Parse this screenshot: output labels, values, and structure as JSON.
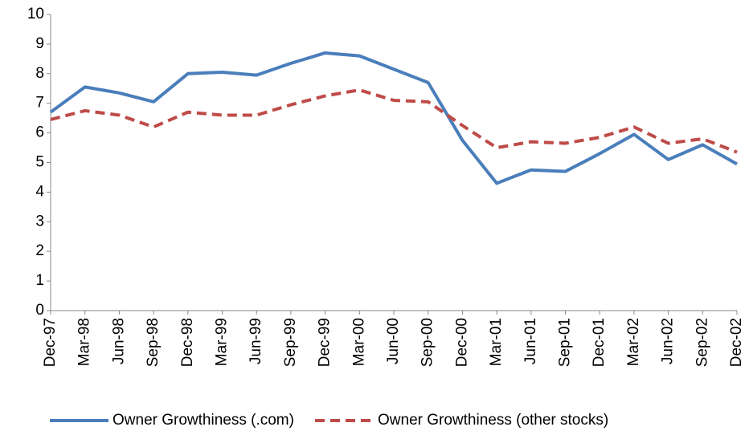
{
  "chart_data": {
    "type": "line",
    "categories": [
      "Dec-97",
      "Mar-98",
      "Jun-98",
      "Sep-98",
      "Dec-98",
      "Mar-99",
      "Jun-99",
      "Sep-99",
      "Dec-99",
      "Mar-00",
      "Jun-00",
      "Sep-00",
      "Dec-00",
      "Mar-01",
      "Jun-01",
      "Sep-01",
      "Dec-01",
      "Mar-02",
      "Jun-02",
      "Sep-02",
      "Dec-02"
    ],
    "series": [
      {
        "name": "Owner Growthiness (.com)",
        "color": "#4a7ebb",
        "line_style": "solid",
        "values": [
          6.7,
          7.55,
          7.35,
          7.05,
          8.0,
          8.05,
          7.95,
          8.35,
          8.7,
          8.6,
          8.15,
          7.7,
          5.75,
          4.3,
          4.75,
          4.7,
          5.3,
          5.95,
          5.1,
          5.6,
          4.95
        ]
      },
      {
        "name": "Owner Growthiness (other stocks)",
        "color": "#be4b48",
        "line_style": "dashed",
        "values": [
          6.45,
          6.75,
          6.6,
          6.2,
          6.7,
          6.6,
          6.6,
          6.95,
          7.25,
          7.45,
          7.1,
          7.05,
          6.25,
          5.5,
          5.7,
          5.65,
          5.85,
          6.2,
          5.65,
          5.8,
          5.35
        ]
      }
    ],
    "ylim": [
      0,
      10
    ],
    "yticks": [
      0,
      1,
      2,
      3,
      4,
      5,
      6,
      7,
      8,
      9,
      10
    ],
    "grid": false,
    "legend": "bottom"
  }
}
